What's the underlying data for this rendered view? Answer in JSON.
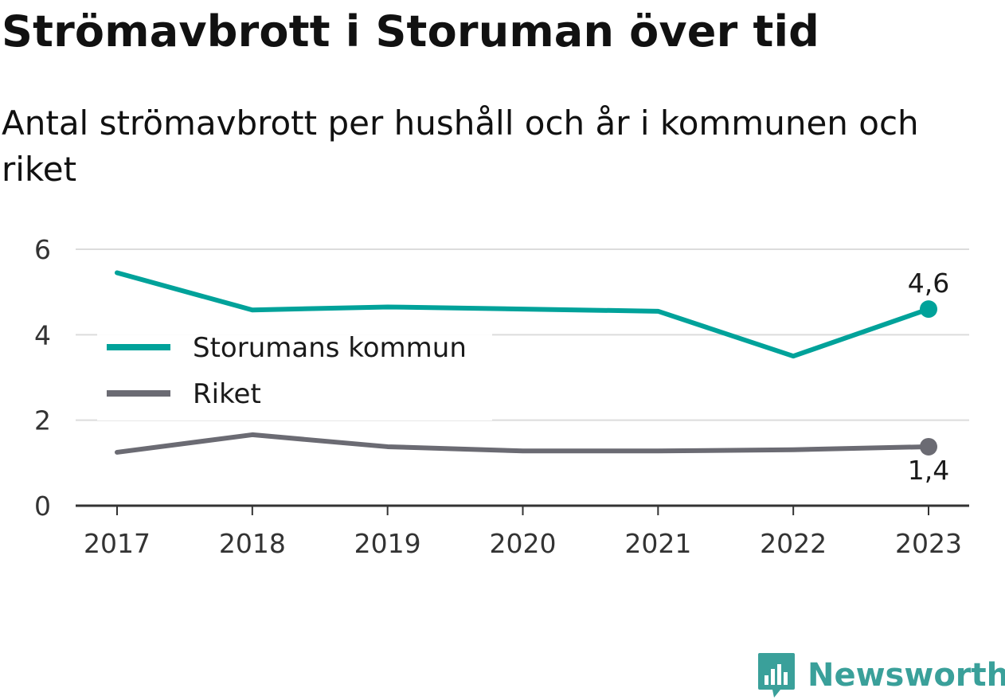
{
  "header": {
    "title": "Strömavbrott i Storuman över tid",
    "subtitle": "Antal strömavbrott per hushåll och år i kommunen och riket"
  },
  "brand": {
    "name": "Newsworthy",
    "icon": "bar-chart-logo-icon",
    "color": "#3aa09a"
  },
  "chart_data": {
    "type": "line",
    "title": "Strömavbrott i Storuman över tid",
    "subtitle": "Antal strömavbrott per hushåll och år i kommunen och riket",
    "xlabel": "",
    "ylabel": "",
    "x": [
      "2017",
      "2018",
      "2019",
      "2020",
      "2021",
      "2022",
      "2023"
    ],
    "ylim": [
      0,
      6
    ],
    "yticks": [
      "0",
      "2",
      "4",
      "6"
    ],
    "grid": true,
    "legend_position": "left",
    "series": [
      {
        "name": "Storumans kommun",
        "color": "#00a29a",
        "values": [
          5.45,
          4.58,
          4.65,
          4.6,
          4.55,
          3.5,
          4.6
        ],
        "end_label": "4,6",
        "end_label_position": "above"
      },
      {
        "name": "Riket",
        "color": "#6b6b73",
        "values": [
          1.25,
          1.66,
          1.38,
          1.28,
          1.28,
          1.31,
          1.38
        ],
        "end_label": "1,4",
        "end_label_position": "below"
      }
    ]
  }
}
